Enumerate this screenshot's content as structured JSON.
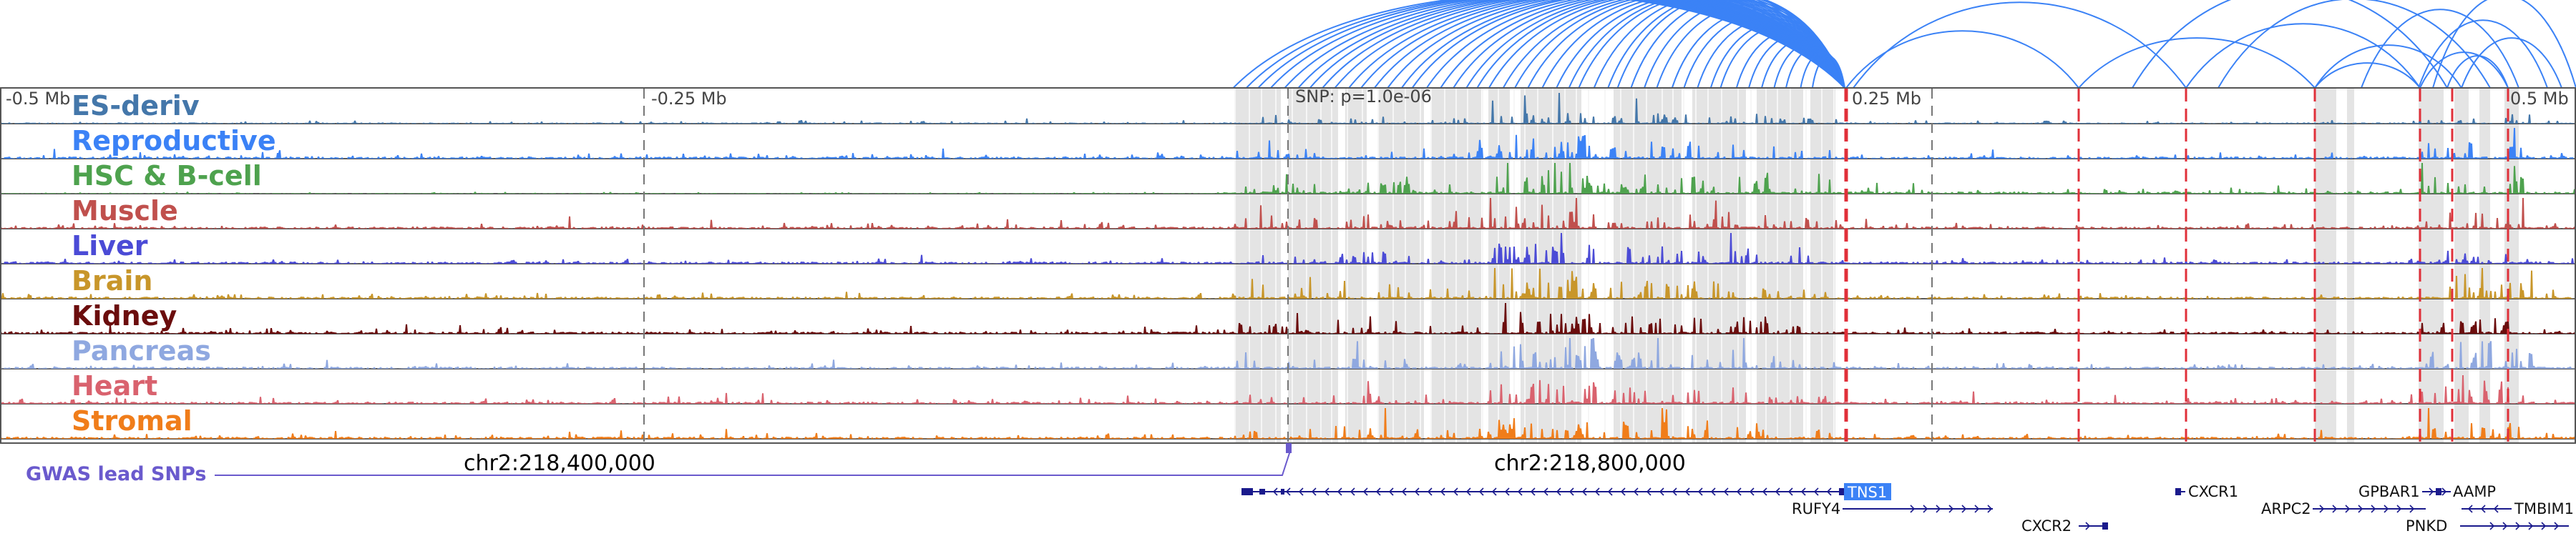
{
  "tracks": [
    {
      "name": "ES-deriv",
      "color": "#4477aa"
    },
    {
      "name": "Reproductive",
      "color": "#3b82f6"
    },
    {
      "name": "HSC & B-cell",
      "color": "#4ea24e"
    },
    {
      "name": "Muscle",
      "color": "#c0504d"
    },
    {
      "name": "Liver",
      "color": "#4b4bd6"
    },
    {
      "name": "Brain",
      "color": "#c8962a"
    },
    {
      "name": "Kidney",
      "color": "#6b0d0d"
    },
    {
      "name": "Pancreas",
      "color": "#8fa8e0"
    },
    {
      "name": "Heart",
      "color": "#d9626e"
    },
    {
      "name": "Stromal",
      "color": "#f07d1a"
    }
  ],
  "axis": {
    "left_label": "-0.5 Mb",
    "mid_left_label": "-0.25 Mb",
    "right_mid_label": "0.25 Mb",
    "right_label": "0.5 Mb"
  },
  "snp": {
    "label": "SNP: p=1.0e-06"
  },
  "coordinates": [
    "chr2:218,400,000",
    "chr2:218,800,000"
  ],
  "gwas": {
    "label": "GWAS lead SNPs"
  },
  "genes": [
    {
      "name": "TNS1",
      "highlight": true
    },
    {
      "name": "RUFY4"
    },
    {
      "name": "CXCR2"
    },
    {
      "name": "CXCR1"
    },
    {
      "name": "GPBAR1"
    },
    {
      "name": "AAMP"
    },
    {
      "name": "ARPC2"
    },
    {
      "name": "TMBIM1"
    },
    {
      "name": "PNKD"
    }
  ],
  "colors": {
    "highlight_gene": "#3b82f6",
    "loop": "#3b82f6",
    "marker_red": "#e0303a",
    "gwas": "#6a5acd",
    "gene_model": "#1a1a8c"
  }
}
